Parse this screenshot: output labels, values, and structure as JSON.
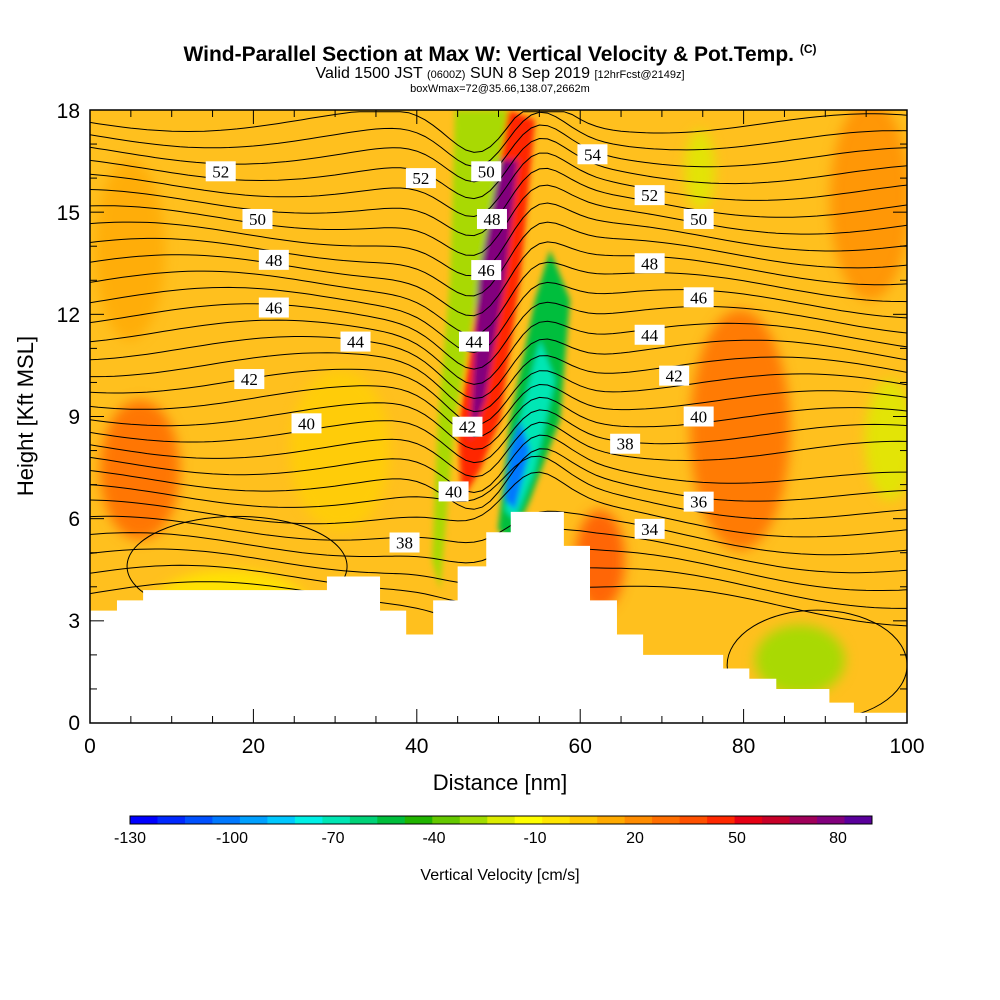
{
  "title": {
    "main": "Wind-Parallel Section at Max W: Vertical Velocity & Pot.Temp.",
    "copyright": "(C)",
    "valid_prefix": "Valid 1500 JST",
    "valid_utc": "(0600Z)",
    "valid_date": "SUN 8 Sep 2019",
    "forecast": "[12hrFcst@2149z]",
    "box": "boxWmax=72@35.66,138.07,2662m"
  },
  "colors": {
    "background_fill": "#ffc01e",
    "terrain": "#ffffff",
    "contour": "#000000"
  },
  "chart_data": {
    "type": "cross-section (filled contour + line contour)",
    "xlabel": "Distance [nm]",
    "ylabel": "Height [Kft MSL]",
    "xlim": [
      0,
      100
    ],
    "ylim": [
      0,
      18
    ],
    "x_ticks": [
      "0",
      "20",
      "40",
      "60",
      "80",
      "100"
    ],
    "y_ticks": [
      "0",
      "3",
      "6",
      "9",
      "12",
      "15",
      "18"
    ],
    "filled_field": "Vertical Velocity [cm/s]",
    "colorbar": {
      "label": "Vertical Velocity [cm/s]",
      "tick_labels": [
        "-130",
        "-100",
        "-70",
        "-40",
        "-10",
        "20",
        "50",
        "80"
      ],
      "colors": [
        "#0000ff",
        "#0028ff",
        "#0050ff",
        "#0078ff",
        "#00a0ff",
        "#00c8ff",
        "#00f0e6",
        "#00e6b4",
        "#00d278",
        "#00be3c",
        "#20b400",
        "#64c800",
        "#a0dc00",
        "#dcec00",
        "#ffff00",
        "#ffe600",
        "#ffc800",
        "#ffaa00",
        "#ff8c00",
        "#ff6e00",
        "#ff5000",
        "#ff2800",
        "#e60014",
        "#c80028",
        "#a0005a",
        "#82007d",
        "#5a009b"
      ]
    },
    "terrain_profile": [
      {
        "x": 0,
        "y": 3.3
      },
      {
        "x": 3.3,
        "y": 3.6
      },
      {
        "x": 6.5,
        "y": 3.9
      },
      {
        "x": 29,
        "y": 4.3
      },
      {
        "x": 35.5,
        "y": 3.3
      },
      {
        "x": 38.7,
        "y": 2.6
      },
      {
        "x": 42,
        "y": 3.6
      },
      {
        "x": 45,
        "y": 4.6
      },
      {
        "x": 48.5,
        "y": 5.6
      },
      {
        "x": 51.5,
        "y": 6.2
      },
      {
        "x": 58,
        "y": 5.2
      },
      {
        "x": 61.2,
        "y": 3.6
      },
      {
        "x": 64.5,
        "y": 2.6
      },
      {
        "x": 67.7,
        "y": 2.0
      },
      {
        "x": 77.5,
        "y": 1.6
      },
      {
        "x": 80.7,
        "y": 1.3
      },
      {
        "x": 84,
        "y": 1.0
      },
      {
        "x": 90.5,
        "y": 0.6
      },
      {
        "x": 93.5,
        "y": 0.3
      },
      {
        "x": 100,
        "y": 0.3
      }
    ],
    "contour_field": "Potential Temperature",
    "contour_labels": [
      {
        "text": "52",
        "x": 16,
        "y": 16.2
      },
      {
        "text": "52",
        "x": 40.5,
        "y": 16.0
      },
      {
        "text": "50",
        "x": 48.5,
        "y": 16.2
      },
      {
        "text": "54",
        "x": 61.5,
        "y": 16.7
      },
      {
        "text": "52",
        "x": 68.5,
        "y": 15.5
      },
      {
        "text": "50",
        "x": 20.5,
        "y": 14.8
      },
      {
        "text": "48",
        "x": 49.2,
        "y": 14.8
      },
      {
        "text": "50",
        "x": 74.5,
        "y": 14.8
      },
      {
        "text": "48",
        "x": 22.5,
        "y": 13.6
      },
      {
        "text": "46",
        "x": 48.5,
        "y": 13.3
      },
      {
        "text": "48",
        "x": 68.5,
        "y": 13.5
      },
      {
        "text": "46",
        "x": 22.5,
        "y": 12.2
      },
      {
        "text": "46",
        "x": 74.5,
        "y": 12.5
      },
      {
        "text": "44",
        "x": 32.5,
        "y": 11.2
      },
      {
        "text": "44",
        "x": 47.0,
        "y": 11.2
      },
      {
        "text": "44",
        "x": 68.5,
        "y": 11.4
      },
      {
        "text": "42",
        "x": 19.5,
        "y": 10.1
      },
      {
        "text": "42",
        "x": 71.5,
        "y": 10.2
      },
      {
        "text": "40",
        "x": 26.5,
        "y": 8.8
      },
      {
        "text": "42",
        "x": 46.2,
        "y": 8.7
      },
      {
        "text": "40",
        "x": 74.5,
        "y": 9.0
      },
      {
        "text": "38",
        "x": 65.5,
        "y": 8.2
      },
      {
        "text": "40",
        "x": 44.5,
        "y": 6.8
      },
      {
        "text": "36",
        "x": 74.5,
        "y": 6.5
      },
      {
        "text": "34",
        "x": 68.5,
        "y": 5.7
      },
      {
        "text": "38",
        "x": 38.5,
        "y": 5.3
      }
    ]
  }
}
